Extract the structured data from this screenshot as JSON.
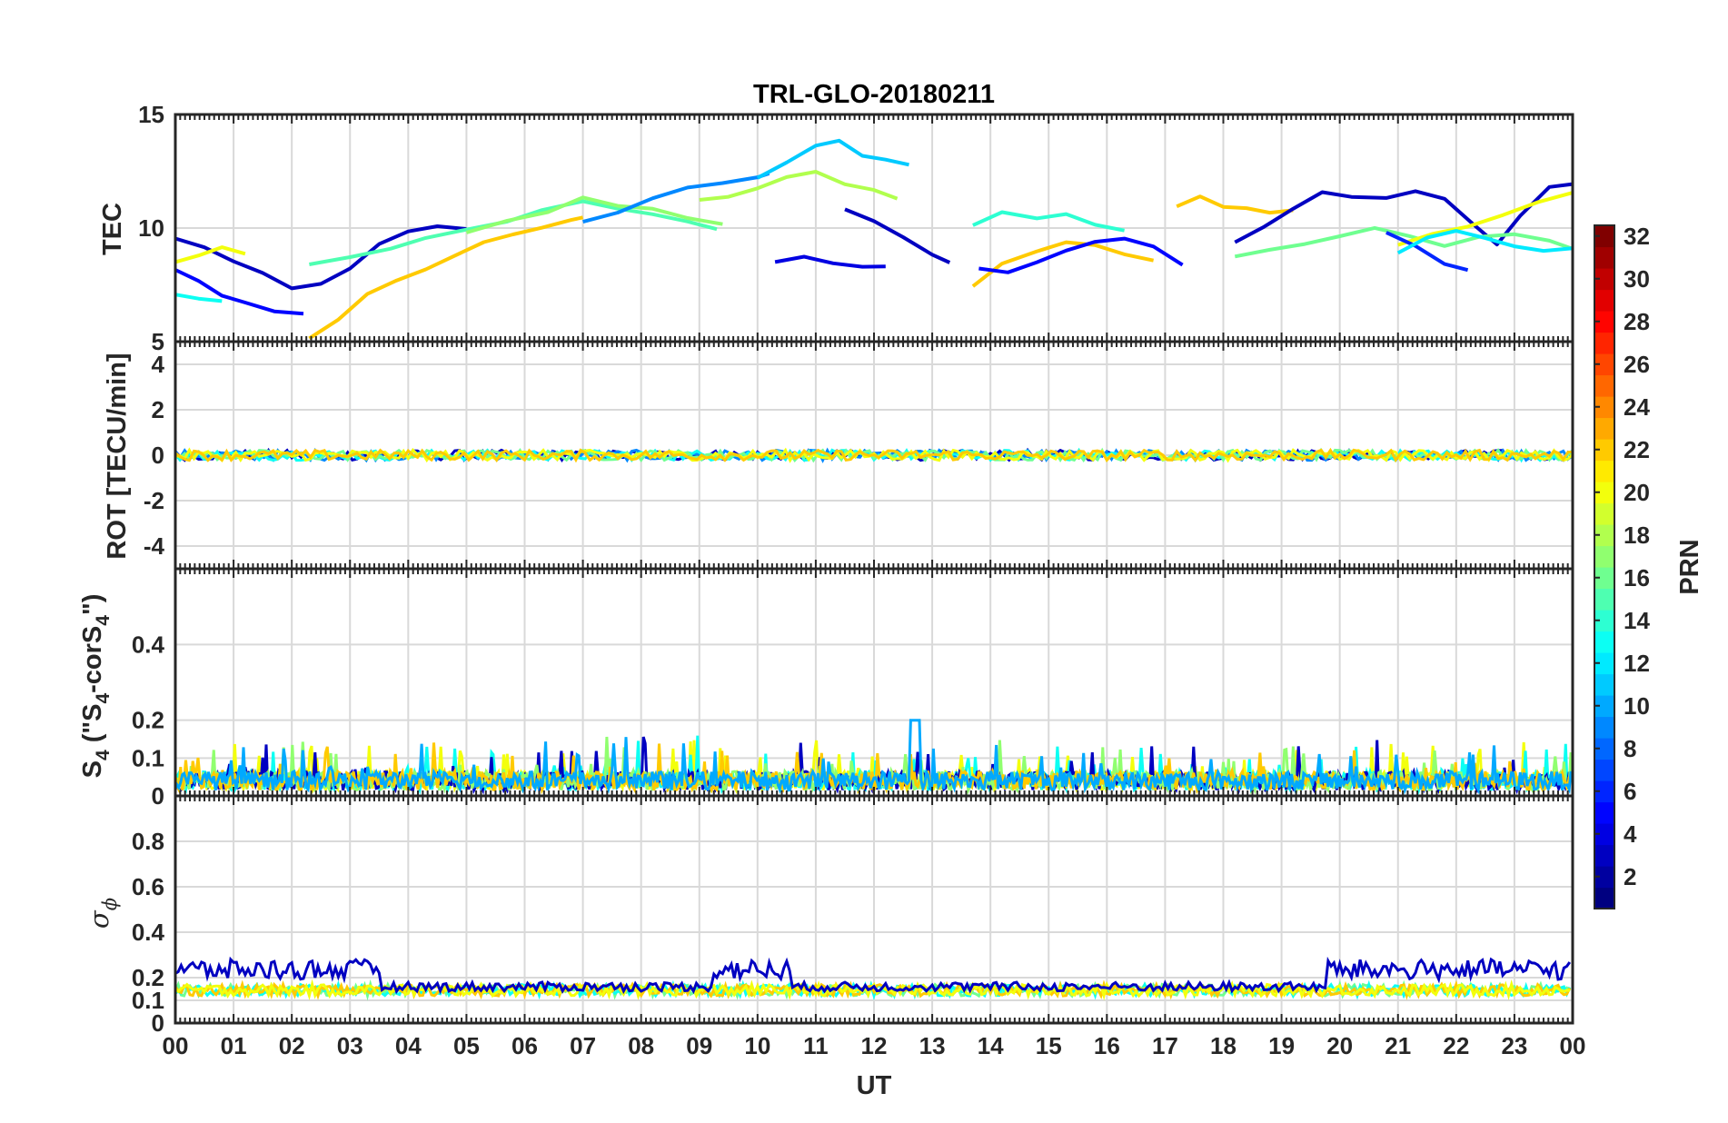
{
  "chart_data": {
    "type": "line",
    "title": "TRL-GLO-20180211",
    "xlabel": "UT",
    "x_ticks": [
      "00",
      "01",
      "02",
      "03",
      "04",
      "05",
      "06",
      "07",
      "08",
      "09",
      "10",
      "11",
      "12",
      "13",
      "14",
      "15",
      "16",
      "17",
      "18",
      "19",
      "20",
      "21",
      "22",
      "23",
      "00"
    ],
    "xlim_hours": [
      0,
      24
    ],
    "panels": [
      {
        "id": "tec",
        "ylabel": "TEC",
        "ylim": [
          5,
          15
        ],
        "yticks": [
          5,
          10,
          15
        ],
        "ytick_labels": [
          "5",
          "10",
          "15"
        ],
        "series": [
          {
            "prn": 3,
            "x": [
              0.0,
              0.5,
              1.0,
              1.5,
              2.0,
              2.5,
              3.0,
              3.5,
              4.0,
              4.5,
              5.0
            ],
            "y": [
              9.5,
              9.2,
              8.5,
              7.9,
              7.3,
              7.5,
              8.3,
              9.2,
              9.8,
              10.0,
              9.9
            ]
          },
          {
            "prn": 5,
            "x": [
              0.0,
              0.4,
              0.8,
              1.2,
              1.7,
              2.2
            ],
            "y": [
              8.2,
              7.6,
              7.1,
              6.7,
              6.4,
              6.3
            ]
          },
          {
            "prn": 13,
            "x": [
              0.0,
              0.4,
              0.8
            ],
            "y": [
              7.0,
              6.8,
              6.7
            ]
          },
          {
            "prn": 20,
            "x": [
              0.0,
              0.4,
              0.8,
              1.2
            ],
            "y": [
              8.6,
              8.8,
              9.1,
              8.9
            ]
          },
          {
            "prn": 22,
            "x": [
              2.3,
              2.8,
              3.3,
              3.8,
              4.3,
              4.8,
              5.3,
              5.8,
              6.3,
              6.8,
              7.0
            ],
            "y": [
              5.2,
              6.0,
              7.0,
              7.6,
              8.2,
              8.8,
              9.3,
              9.8,
              10.1,
              10.4,
              10.5
            ]
          },
          {
            "prn": 15,
            "x": [
              2.3,
              3.0,
              3.7,
              4.3,
              5.0,
              5.7,
              6.3,
              7.0,
              7.6,
              8.2,
              8.8,
              9.3
            ],
            "y": [
              8.4,
              8.6,
              9.1,
              9.5,
              10.0,
              10.3,
              10.7,
              11.1,
              10.9,
              10.6,
              10.2,
              9.9
            ]
          },
          {
            "prn": 17,
            "x": [
              5.0,
              5.7,
              6.4,
              7.0,
              7.6,
              8.2,
              8.8,
              9.4
            ],
            "y": [
              9.9,
              10.3,
              10.8,
              11.3,
              11.0,
              10.8,
              10.5,
              10.2
            ]
          },
          {
            "prn": 9,
            "x": [
              7.0,
              7.6,
              8.2,
              8.8,
              9.4,
              10.0,
              10.2
            ],
            "y": [
              10.3,
              10.7,
              11.2,
              11.8,
              12.1,
              12.3,
              12.5
            ]
          },
          {
            "prn": 18,
            "x": [
              9.0,
              9.5,
              10.0,
              10.5,
              11.0,
              11.5,
              12.0,
              12.4
            ],
            "y": [
              11.2,
              11.5,
              11.8,
              12.3,
              12.5,
              12.0,
              11.6,
              11.3
            ]
          },
          {
            "prn": 11,
            "x": [
              10.0,
              10.5,
              11.0,
              11.4,
              11.8,
              12.2,
              12.6
            ],
            "y": [
              12.2,
              12.8,
              13.6,
              13.8,
              13.3,
              13.0,
              12.8
            ]
          },
          {
            "prn": 4,
            "x": [
              10.3,
              10.8,
              11.3,
              11.8,
              12.2
            ],
            "y": [
              8.5,
              8.7,
              8.5,
              8.3,
              8.2
            ]
          },
          {
            "prn": 3,
            "x": [
              11.5,
              12.0,
              12.5,
              13.0,
              13.3
            ],
            "y": [
              10.9,
              10.3,
              9.5,
              8.8,
              8.6
            ]
          },
          {
            "prn": 22,
            "x": [
              13.7,
              14.2,
              14.8,
              15.3,
              15.8,
              16.3,
              16.8
            ],
            "y": [
              7.4,
              8.4,
              9.0,
              9.3,
              9.2,
              8.9,
              8.5
            ]
          },
          {
            "prn": 14,
            "x": [
              13.7,
              14.2,
              14.8,
              15.3,
              15.8,
              16.3
            ],
            "y": [
              10.0,
              10.7,
              10.5,
              10.6,
              10.1,
              9.8
            ]
          },
          {
            "prn": 5,
            "x": [
              13.8,
              14.3,
              14.8,
              15.3,
              15.8,
              16.3,
              16.8,
              17.3
            ],
            "y": [
              8.2,
              8.0,
              8.6,
              8.9,
              9.5,
              9.6,
              9.2,
              8.3
            ]
          },
          {
            "prn": 22,
            "x": [
              17.2,
              17.6,
              18.0,
              18.4,
              18.8,
              19.2
            ],
            "y": [
              11.0,
              11.3,
              11.0,
              10.8,
              10.7,
              10.8
            ]
          },
          {
            "prn": 3,
            "x": [
              18.2,
              18.7,
              19.2,
              19.7,
              20.2,
              20.8,
              21.3,
              21.8,
              22.3,
              22.7,
              23.1,
              23.6,
              24.0
            ],
            "y": [
              9.5,
              10.1,
              10.8,
              11.5,
              11.3,
              11.2,
              11.6,
              11.2,
              10.2,
              9.4,
              10.6,
              11.8,
              11.9
            ]
          },
          {
            "prn": 16,
            "x": [
              18.2,
              18.8,
              19.4,
              20.0,
              20.6,
              21.2,
              21.8,
              22.4,
              23.0,
              23.6,
              24.0
            ],
            "y": [
              8.7,
              9.0,
              9.3,
              9.6,
              9.9,
              9.6,
              9.3,
              9.6,
              9.8,
              9.4,
              9.1
            ]
          },
          {
            "prn": 20,
            "x": [
              21.0,
              21.6,
              22.2,
              22.8,
              23.4,
              24.0
            ],
            "y": [
              9.3,
              9.7,
              10.1,
              10.6,
              11.2,
              11.6
            ]
          },
          {
            "prn": 6,
            "x": [
              20.8,
              21.3,
              21.8,
              22.2
            ],
            "y": [
              9.9,
              9.2,
              8.3,
              8.1
            ]
          },
          {
            "prn": 12,
            "x": [
              21.0,
              21.5,
              22.0,
              22.5,
              23.0,
              23.5,
              24.0
            ],
            "y": [
              8.9,
              9.5,
              9.8,
              9.6,
              9.2,
              9.0,
              9.2
            ]
          }
        ]
      },
      {
        "id": "rot",
        "ylabel": "ROT [TECU/min]",
        "ylim": [
          -5,
          5
        ],
        "yticks": [
          -4,
          -2,
          0,
          2,
          4
        ],
        "ytick_labels": [
          "-4",
          "-2",
          "0",
          "2",
          "4"
        ],
        "series_summary": "all PRNs within about +/-0.3 TECU/min of zero throughout the day"
      },
      {
        "id": "s4",
        "ylabel_main": "S",
        "ylabel_sub": "4",
        "ylabel_paren": " (\"S",
        "ylabel_sub2": "4",
        "ylabel_mid": "-corS",
        "ylabel_sub3": "4",
        "ylabel_end": "\")",
        "ylim": [
          0,
          0.6
        ],
        "yticks": [
          0,
          0.1,
          0.2,
          0.4
        ],
        "ytick_labels": [
          "0",
          "0.1",
          "0.2",
          "0.4"
        ],
        "series_summary": "mostly 0.02-0.1 with spikes to ~0.2 near 12.7 UT"
      },
      {
        "id": "sigma_phi",
        "ylabel_main": "σ",
        "ylabel_sub": "ϕ",
        "ylim": [
          0,
          1
        ],
        "yticks": [
          0,
          0.1,
          0.2,
          0.4,
          0.6,
          0.8
        ],
        "ytick_labels": [
          "0",
          "0.1",
          "0.2",
          "0.4",
          "0.6",
          "0.8"
        ],
        "series_summary": "mostly 0.1-0.2; elevated 0.2-0.3 for low PRNs 00-03.5, 09.2-10.6, 19.8-24 UT"
      }
    ],
    "colorbar": {
      "label": "PRN",
      "range": [
        1,
        32
      ],
      "ticks": [
        2,
        4,
        6,
        8,
        10,
        12,
        14,
        16,
        18,
        20,
        22,
        24,
        26,
        28,
        30,
        32
      ],
      "tick_labels": [
        "2",
        "4",
        "6",
        "8",
        "10",
        "12",
        "14",
        "16",
        "18",
        "20",
        "22",
        "24",
        "26",
        "28",
        "30",
        "32"
      ],
      "colormap": "jet"
    }
  }
}
